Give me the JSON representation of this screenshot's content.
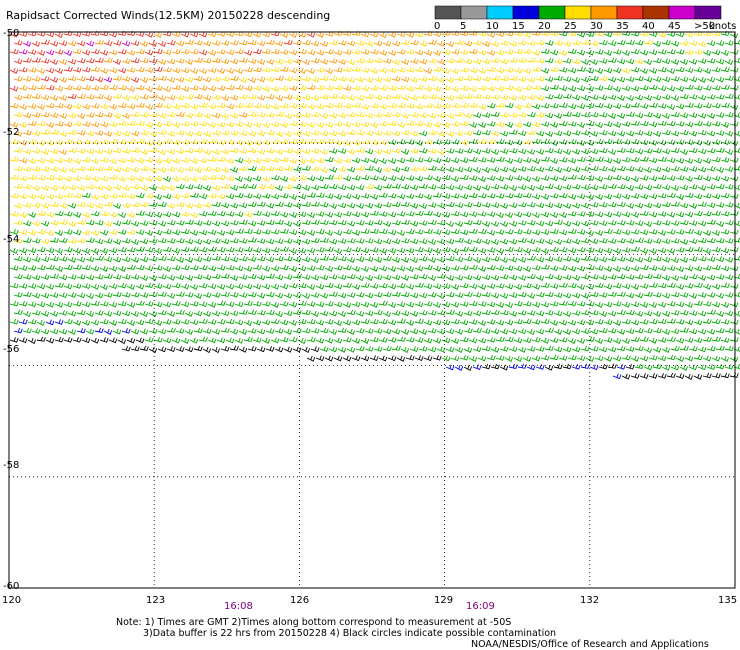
{
  "header": {
    "title": "Rapidsact Corrected Winds(12.5KM) 20150228 descending"
  },
  "legend": {
    "units": "knots",
    "bins": [
      {
        "label": "0",
        "color": "#555555"
      },
      {
        "label": "5",
        "color": "#999999"
      },
      {
        "label": "10",
        "color": "#00ccff"
      },
      {
        "label": "15",
        "color": "#0000dd"
      },
      {
        "label": "20",
        "color": "#00aa00"
      },
      {
        "label": "25",
        "color": "#ffdd00"
      },
      {
        "label": "30",
        "color": "#ff9900"
      },
      {
        "label": "35",
        "color": "#ee3322"
      },
      {
        "label": "40",
        "color": "#aa3300"
      },
      {
        "label": "45",
        "color": "#cc00cc"
      },
      {
        "label": ">50",
        "color": "#660099"
      }
    ]
  },
  "map": {
    "lat_labels": [
      "-50",
      "-52",
      "-54",
      "-56",
      "-58",
      "-60"
    ],
    "lon_labels": [
      "120",
      "123",
      "126",
      "129",
      "132",
      "135"
    ],
    "time_labels": [
      "16:08",
      "16:09"
    ],
    "lat_range": [
      -60,
      -50
    ],
    "lon_range": [
      120,
      135
    ],
    "barb_colors": {
      "calm": "#000000",
      "light": "#0000dd",
      "moderate": "#00aa00",
      "fresh": "#ffdd00",
      "strong": "#ff9900",
      "gale": "#ee3322",
      "storm": "#cc00cc"
    }
  },
  "footer": {
    "note_line1": "Note: 1) Times are GMT 2)Times along bottom correspond to measurement at -50S",
    "note_line2": "3)Data buffer is 22 hrs from 20150228 4) Black circles indicate possible contamination",
    "credit": "NOAA/NESDIS/Office of Research and Applications"
  }
}
